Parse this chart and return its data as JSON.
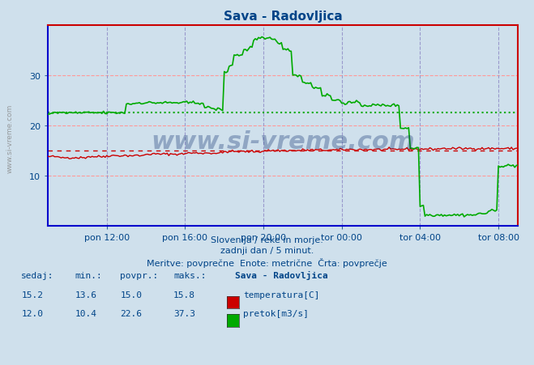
{
  "title": "Sava - Radovljica",
  "bg_color": "#cfe0ec",
  "plot_bg_color": "#cfe0ec",
  "grid_color_h": "#ff9999",
  "grid_color_v": "#9999cc",
  "temp_color": "#cc0000",
  "flow_color": "#00aa00",
  "avg_temp_color": "#cc0000",
  "avg_flow_color": "#00aa00",
  "spine_bottom_color": "#0000cc",
  "spine_left_color": "#0000cc",
  "spine_right_color": "#cc0000",
  "spine_top_color": "#cc0000",
  "xlabel_color": "#004488",
  "title_color": "#004488",
  "text_color": "#004488",
  "ylim": [
    0,
    40
  ],
  "yticks": [
    10,
    20,
    30
  ],
  "temp_avg": 15.0,
  "flow_avg": 22.6,
  "temp_sedaj": 15.2,
  "temp_min": 13.6,
  "temp_povpr": 15.0,
  "temp_maks": 15.8,
  "flow_sedaj": 12.0,
  "flow_min": 10.4,
  "flow_povpr": 22.6,
  "flow_maks": 37.3,
  "subtitle1": "Slovenija / reke in morje.",
  "subtitle2": "zadnji dan / 5 minut.",
  "subtitle3": "Meritve: povprečne  Enote: metrične  Črta: povprečje",
  "legend_title": "Sava - Radovljica",
  "xtick_labels": [
    "pon 12:00",
    "pon 16:00",
    "pon 20:00",
    "tor 00:00",
    "tor 04:00",
    "tor 08:00"
  ],
  "watermark": "www.si-vreme.com",
  "left_watermark": "www.si-vreme.com"
}
